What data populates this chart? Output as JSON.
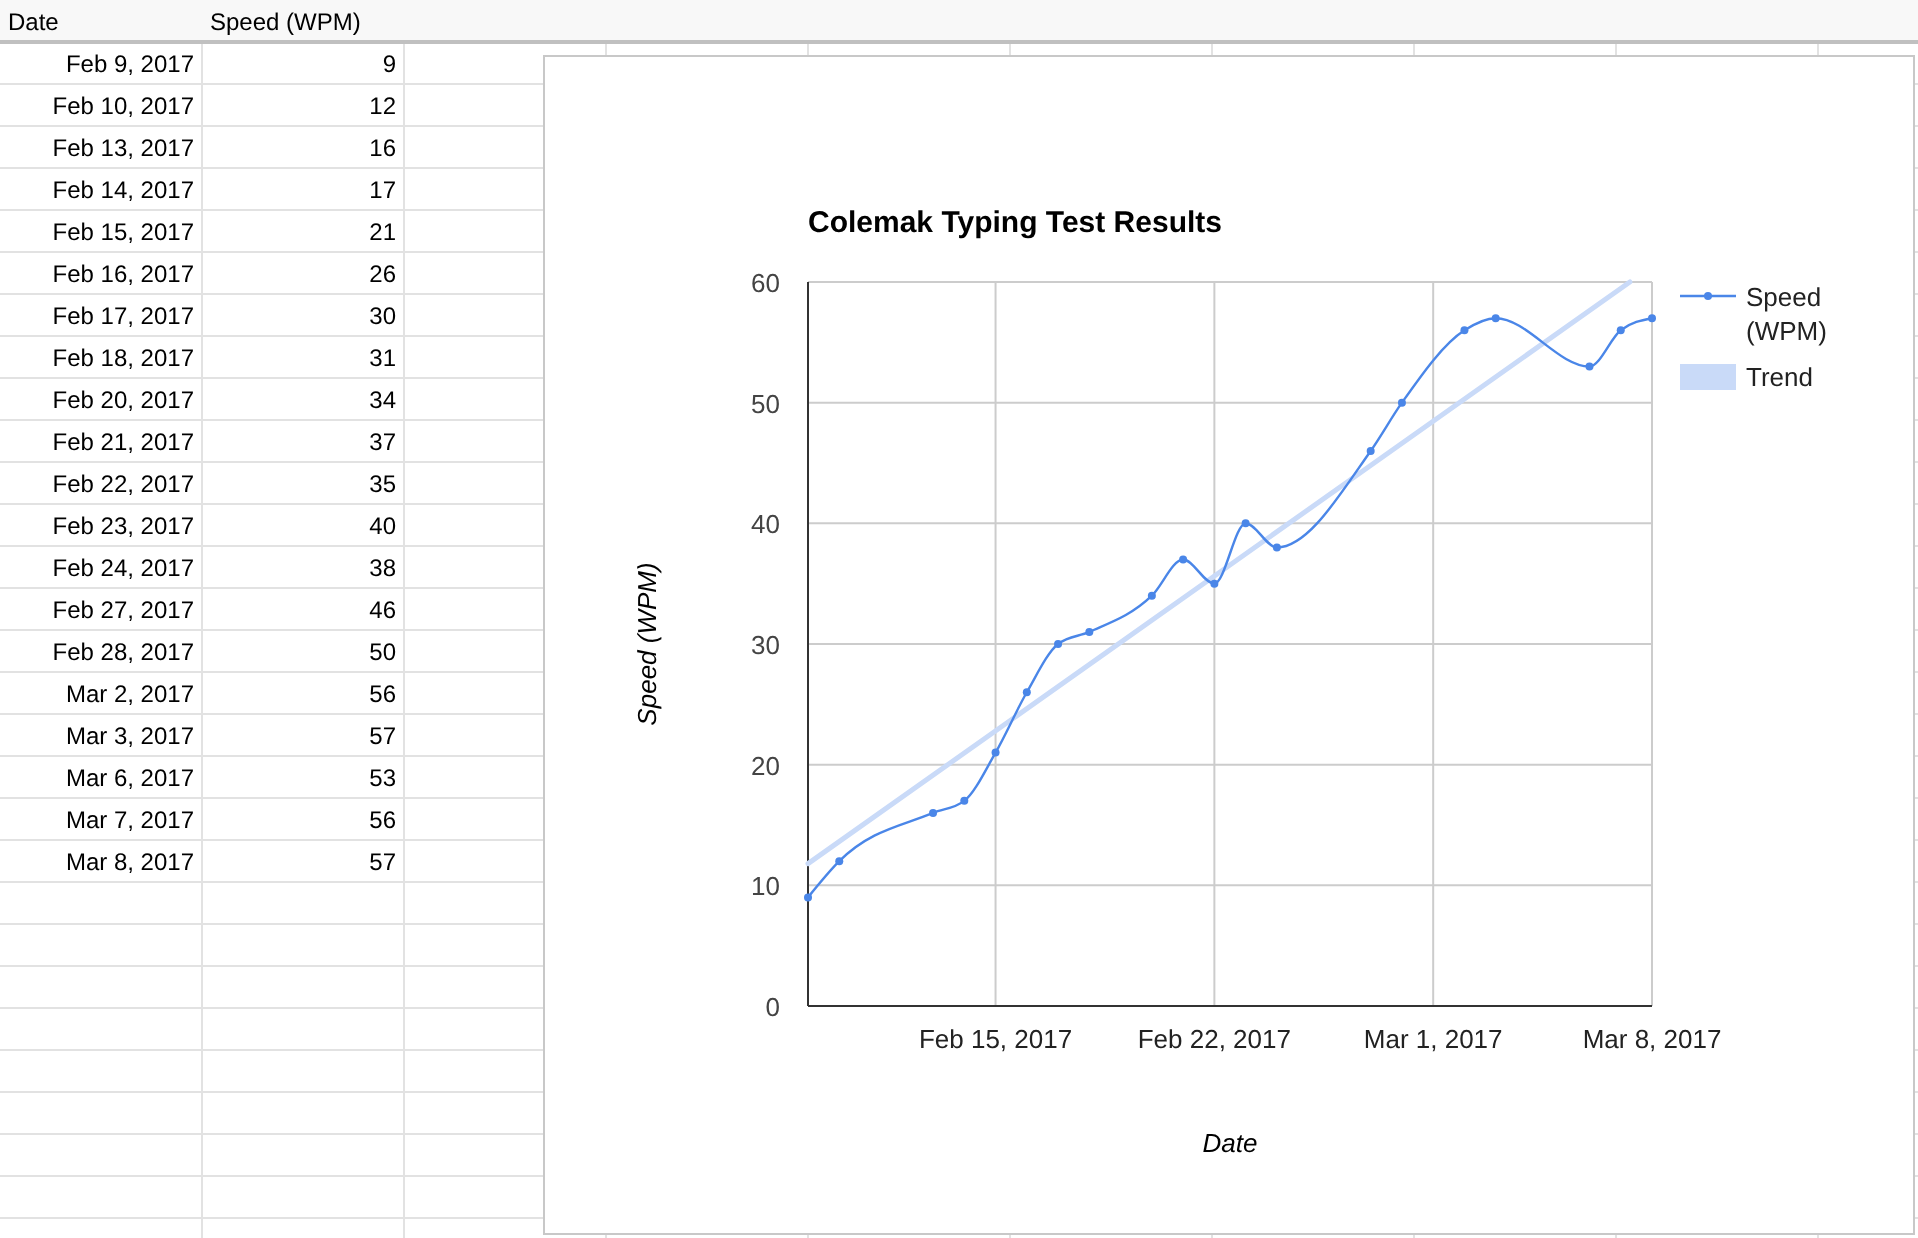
{
  "chart_data": [
    {
      "type": "other",
      "xlabel": "Date",
      "ylabel": "Speed (WPM)",
      "categories": [
        "Feb 9, 2017",
        "Feb 10, 2017",
        "Feb 13, 2017",
        "Feb 14, 2017",
        "Feb 15, 2017",
        "Feb 16, 2017",
        "Feb 17, 2017",
        "Feb 18, 2017",
        "Feb 20, 2017",
        "Feb 21, 2017",
        "Feb 22, 2017",
        "Feb 23, 2017",
        "Feb 24, 2017",
        "Feb 27, 2017",
        "Feb 28, 2017",
        "Mar 2, 2017",
        "Mar 3, 2017",
        "Mar 6, 2017",
        "Mar 7, 2017",
        "Mar 8, 2017"
      ],
      "values": [
        9,
        12,
        16,
        17,
        21,
        26,
        30,
        31,
        34,
        37,
        35,
        40,
        38,
        46,
        50,
        56,
        57,
        53,
        56,
        57
      ],
      "data_labels": true
    },
    {
      "type": "line",
      "title": "Colemak Typing Test Results",
      "xlabel": "Date",
      "ylabel": "Speed (WPM)",
      "x": [
        "2017-02-09",
        "2017-02-10",
        "2017-02-13",
        "2017-02-14",
        "2017-02-15",
        "2017-02-16",
        "2017-02-17",
        "2017-02-18",
        "2017-02-20",
        "2017-02-21",
        "2017-02-22",
        "2017-02-23",
        "2017-02-24",
        "2017-02-27",
        "2017-02-28",
        "2017-03-02",
        "2017-03-03",
        "2017-03-06",
        "2017-03-07",
        "2017-03-08"
      ],
      "series": [
        {
          "name": "Speed (WPM)",
          "color": "#4a86e8",
          "values": [
            9,
            12,
            16,
            17,
            21,
            26,
            30,
            31,
            34,
            37,
            35,
            40,
            38,
            46,
            50,
            56,
            57,
            53,
            56,
            57
          ]
        },
        {
          "name": "Trend",
          "type": "line",
          "color": "#c9daf8",
          "marker": "none",
          "x": [
            "2017-02-09",
            "2017-03-07T07:00"
          ],
          "values": [
            11.8,
            60
          ]
        }
      ],
      "xlim": [
        "2017-02-09",
        "2017-03-08"
      ],
      "xticks": [
        {
          "value": "2017-02-15",
          "label": "Feb 15, 2017"
        },
        {
          "value": "2017-02-22",
          "label": "Feb 22, 2017"
        },
        {
          "value": "2017-03-01",
          "label": "Mar 1, 2017"
        },
        {
          "value": "2017-03-08",
          "label": "Mar 8, 2017"
        }
      ],
      "ylim": [
        0,
        60
      ],
      "yticks": [
        0,
        10,
        20,
        30,
        40,
        50,
        60
      ],
      "grid": true,
      "legend": "right",
      "marker": "circle"
    }
  ]
}
